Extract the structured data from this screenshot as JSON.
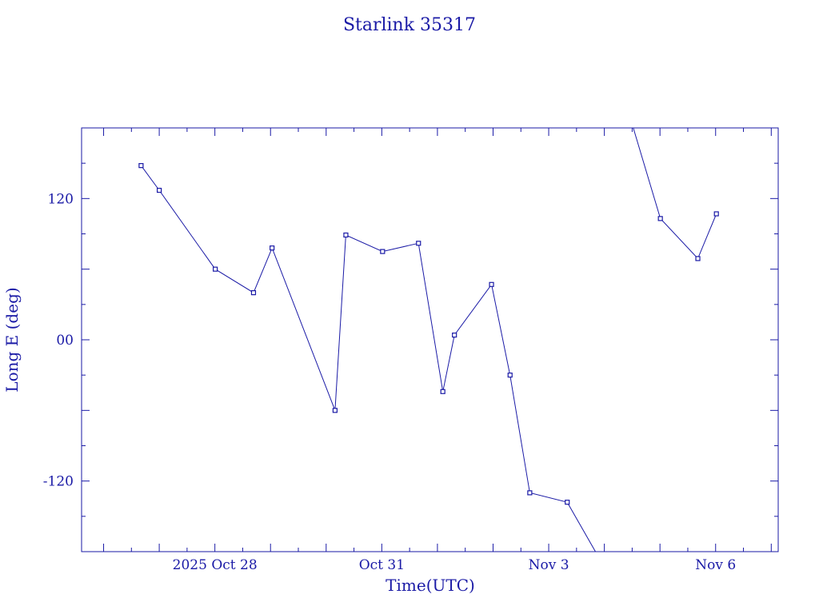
{
  "chart_data": {
    "type": "line",
    "title": "Starlink 35317",
    "xlabel": "Time(UTC)",
    "ylabel": "Long E (deg)",
    "ylim": [
      -180,
      180
    ],
    "xlim": [
      "2025-10-25T14:30",
      "2025-11-07T03:00"
    ],
    "x_ticks": [
      {
        "label": "2025 Oct 28",
        "date": "2025-10-28T00:00"
      },
      {
        "label": "Oct 31",
        "date": "2025-10-31T00:00"
      },
      {
        "label": "Nov  3",
        "date": "2025-11-03T00:00"
      },
      {
        "label": "Nov  6",
        "date": "2025-11-06T00:00"
      }
    ],
    "y_ticks": [
      {
        "label": "120",
        "value": 120
      },
      {
        "label": "00",
        "value": 0
      },
      {
        "label": "-120",
        "value": -120
      }
    ],
    "grid": false,
    "color": "#1a1aa6",
    "segments": [
      {
        "points": [
          {
            "x": "2025-10-26T16:10",
            "y": 148
          },
          {
            "x": "2025-10-27T00:00",
            "y": 127
          },
          {
            "x": "2025-10-28T00:10",
            "y": 60
          },
          {
            "x": "2025-10-28T16:40",
            "y": 40
          },
          {
            "x": "2025-10-29T00:40",
            "y": 78
          },
          {
            "x": "2025-10-30T03:50",
            "y": -60
          },
          {
            "x": "2025-10-30T08:30",
            "y": 89
          },
          {
            "x": "2025-10-31T00:20",
            "y": 75
          },
          {
            "x": "2025-10-31T15:50",
            "y": 82
          },
          {
            "x": "2025-11-01T02:20",
            "y": -44
          },
          {
            "x": "2025-11-01T07:20",
            "y": 4
          },
          {
            "x": "2025-11-01T23:20",
            "y": 47
          },
          {
            "x": "2025-11-02T07:20",
            "y": -30
          },
          {
            "x": "2025-11-02T15:50",
            "y": -130
          },
          {
            "x": "2025-11-03T08:00",
            "y": -138
          },
          {
            "x": "2025-11-03T20:10",
            "y": -180
          }
        ]
      },
      {
        "points": [
          {
            "x": "2025-11-04T12:30",
            "y": 180
          },
          {
            "x": "2025-11-05T00:10",
            "y": 103
          },
          {
            "x": "2025-11-05T16:20",
            "y": 69
          },
          {
            "x": "2025-11-06T00:20",
            "y": 107
          }
        ]
      }
    ],
    "markers": [
      {
        "x": "2025-10-26T16:10",
        "y": 148
      },
      {
        "x": "2025-10-27T00:00",
        "y": 127
      },
      {
        "x": "2025-10-28T00:10",
        "y": 60
      },
      {
        "x": "2025-10-28T16:40",
        "y": 40
      },
      {
        "x": "2025-10-29T00:40",
        "y": 78
      },
      {
        "x": "2025-10-30T03:50",
        "y": -60
      },
      {
        "x": "2025-10-30T08:30",
        "y": 89
      },
      {
        "x": "2025-10-31T00:20",
        "y": 75
      },
      {
        "x": "2025-10-31T15:50",
        "y": 82
      },
      {
        "x": "2025-11-01T02:20",
        "y": -44
      },
      {
        "x": "2025-11-01T07:20",
        "y": 4
      },
      {
        "x": "2025-11-01T23:20",
        "y": 47
      },
      {
        "x": "2025-11-02T07:20",
        "y": -30
      },
      {
        "x": "2025-11-02T15:50",
        "y": -130
      },
      {
        "x": "2025-11-03T08:00",
        "y": -138
      },
      {
        "x": "2025-11-05T00:10",
        "y": 103
      },
      {
        "x": "2025-11-05T16:20",
        "y": 69
      },
      {
        "x": "2025-11-06T00:20",
        "y": 107
      }
    ]
  }
}
